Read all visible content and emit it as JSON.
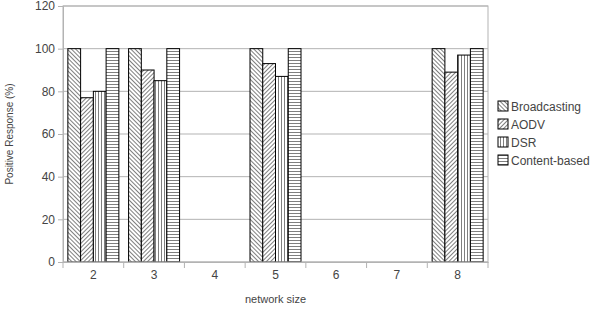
{
  "chart_data": {
    "type": "bar",
    "x_label": "network size",
    "y_label": "Positive Response (%)",
    "categories": [
      "2",
      "3",
      "4",
      "5",
      "6",
      "7",
      "8"
    ],
    "series": [
      {
        "name": "Broadcasting",
        "color": "#000000",
        "values": [
          100,
          100,
          null,
          100,
          null,
          null,
          100
        ]
      },
      {
        "name": "AODV",
        "color": "#000000",
        "values": [
          77,
          90,
          null,
          93,
          null,
          null,
          89
        ]
      },
      {
        "name": "DSR",
        "color": "#000000",
        "values": [
          80,
          85,
          null,
          87,
          null,
          null,
          97
        ]
      },
      {
        "name": "Content-based",
        "color": "#000000",
        "values": [
          100,
          100,
          null,
          100,
          null,
          null,
          100
        ]
      }
    ],
    "ylim": [
      0,
      120
    ],
    "yticks": [
      0,
      20,
      40,
      60,
      80,
      100,
      120
    ],
    "grid": true,
    "legend": "right"
  }
}
